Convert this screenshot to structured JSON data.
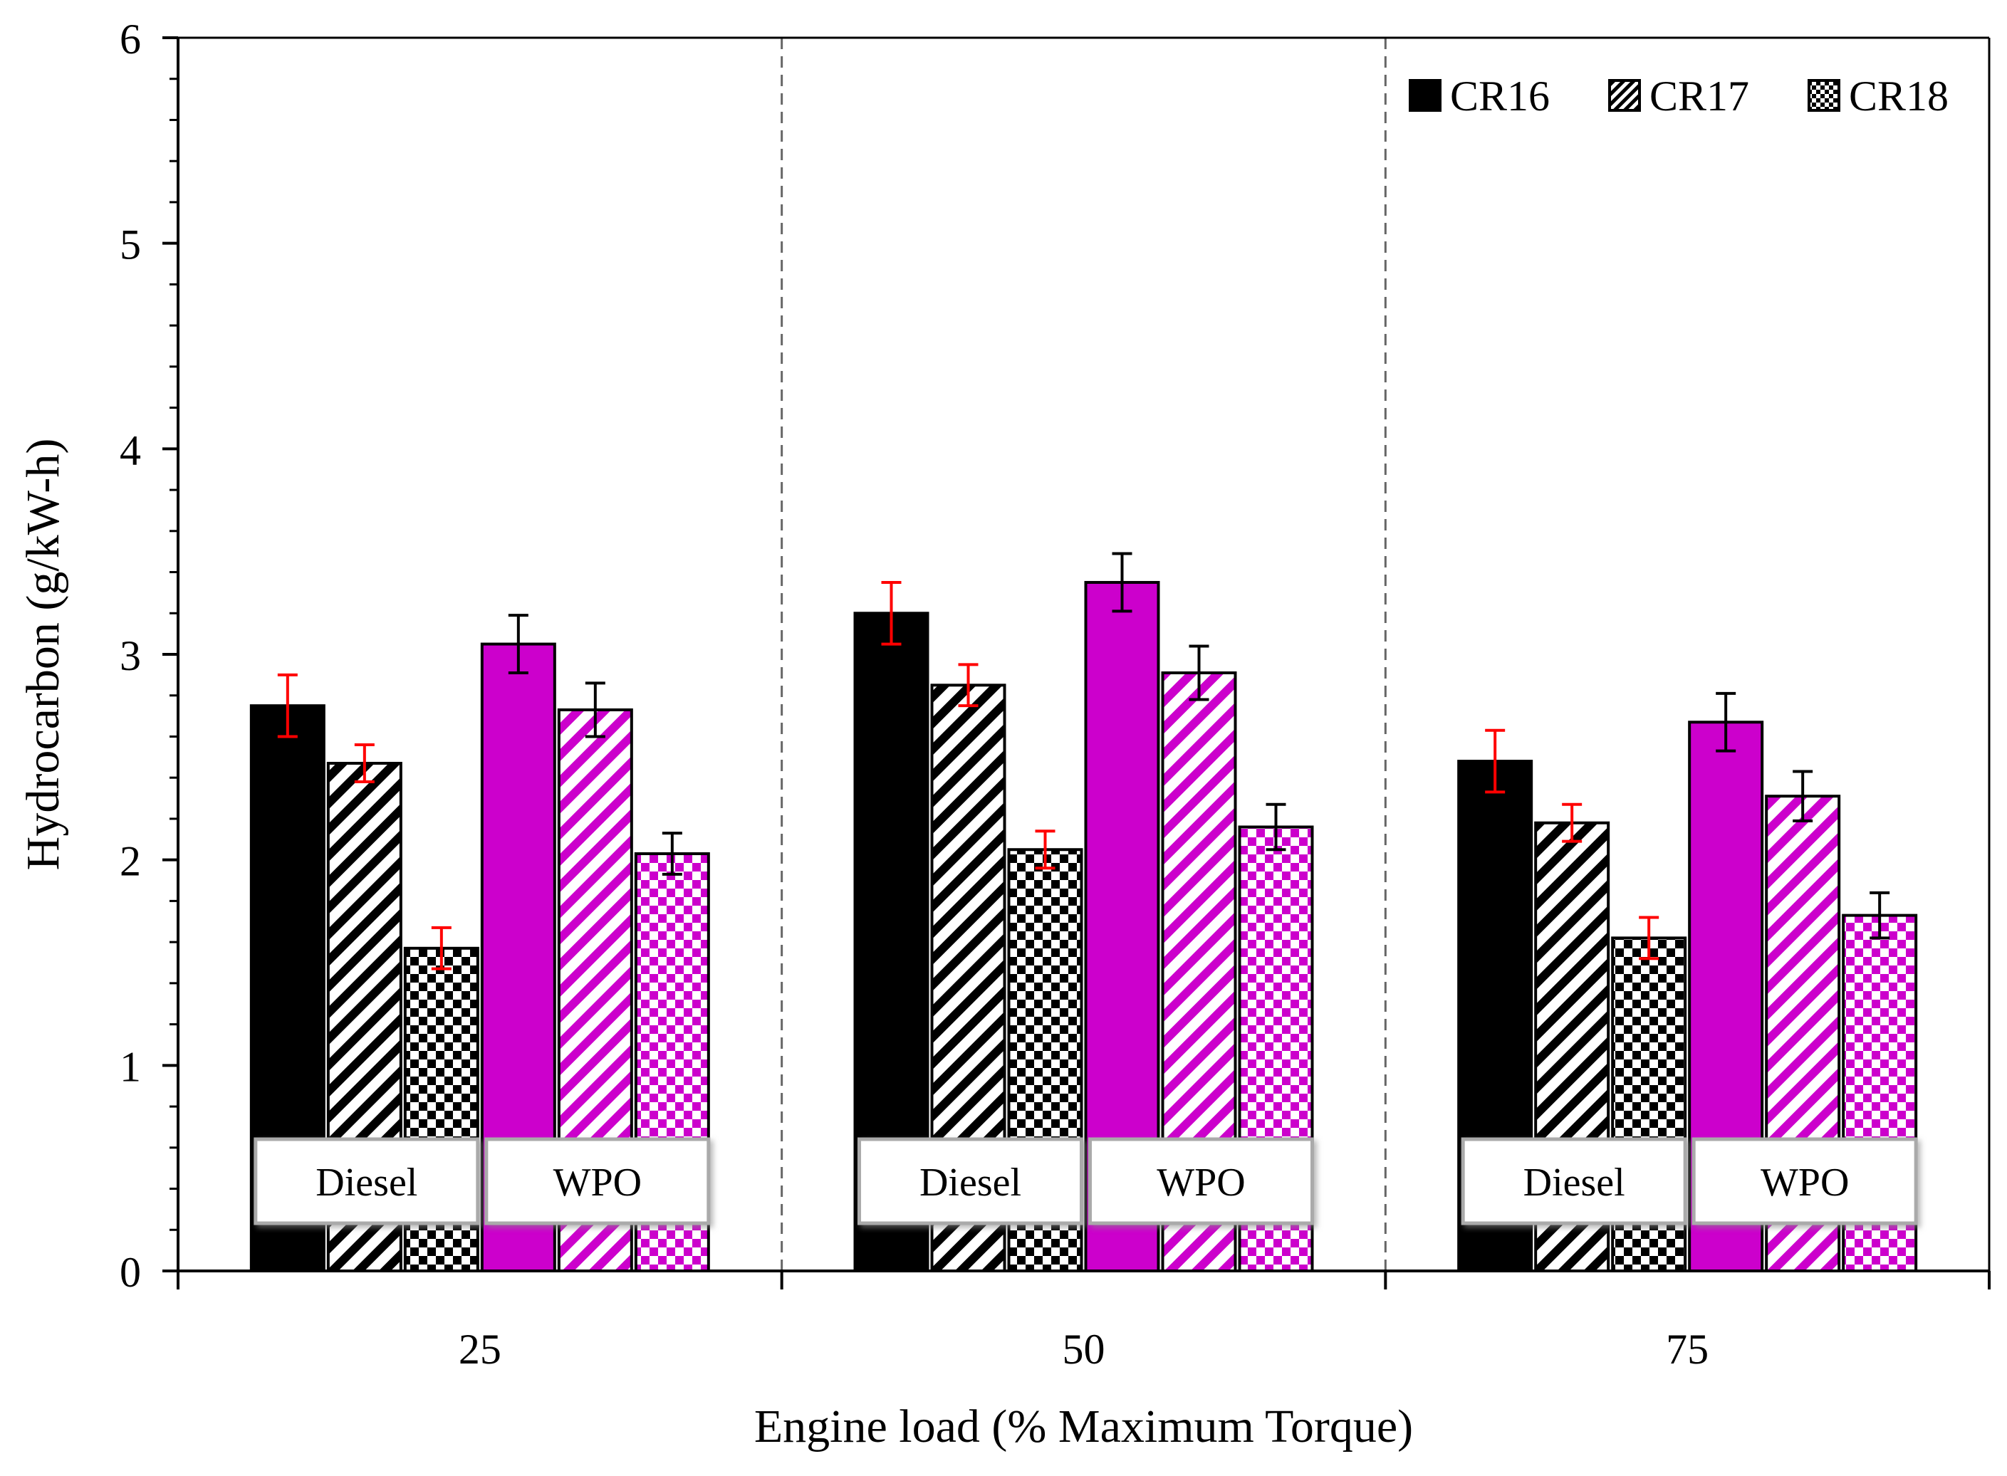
{
  "chart_data": {
    "type": "bar",
    "ylabel": "Hydrocarbon (g/kW-h)",
    "xlabel": "Engine load (% Maximum Torque)",
    "ylim": [
      0,
      6
    ],
    "yticks": [
      "0",
      "1",
      "2",
      "3",
      "4",
      "5",
      "6"
    ],
    "categories": [
      "25",
      "50",
      "75"
    ],
    "fuel_groups": [
      "Diesel",
      "WPO"
    ],
    "legend": [
      "CR16",
      "CR17",
      "CR18"
    ],
    "legend_position": "top-right",
    "colors": {
      "Diesel": "#000000",
      "WPO": "#cc00cc",
      "diesel_error": "#ff0000",
      "wpo_error": "#000000"
    },
    "series": [
      {
        "name": "Diesel CR16",
        "fuel": "Diesel",
        "pattern": "solid",
        "values": [
          2.75,
          3.2,
          2.48
        ],
        "errors": [
          0.15,
          0.15,
          0.15
        ]
      },
      {
        "name": "Diesel CR17",
        "fuel": "Diesel",
        "pattern": "diagonal",
        "values": [
          2.47,
          2.85,
          2.18
        ],
        "errors": [
          0.09,
          0.1,
          0.09
        ]
      },
      {
        "name": "Diesel CR18",
        "fuel": "Diesel",
        "pattern": "checker",
        "values": [
          1.57,
          2.05,
          1.62
        ],
        "errors": [
          0.1,
          0.09,
          0.1
        ]
      },
      {
        "name": "WPO CR16",
        "fuel": "WPO",
        "pattern": "solid",
        "values": [
          3.05,
          3.35,
          2.67
        ],
        "errors": [
          0.14,
          0.14,
          0.14
        ]
      },
      {
        "name": "WPO CR17",
        "fuel": "WPO",
        "pattern": "diagonal",
        "values": [
          2.73,
          2.91,
          2.31
        ],
        "errors": [
          0.13,
          0.13,
          0.12
        ]
      },
      {
        "name": "WPO CR18",
        "fuel": "WPO",
        "pattern": "checker",
        "values": [
          2.03,
          2.16,
          1.73
        ],
        "errors": [
          0.1,
          0.11,
          0.11
        ]
      }
    ]
  }
}
